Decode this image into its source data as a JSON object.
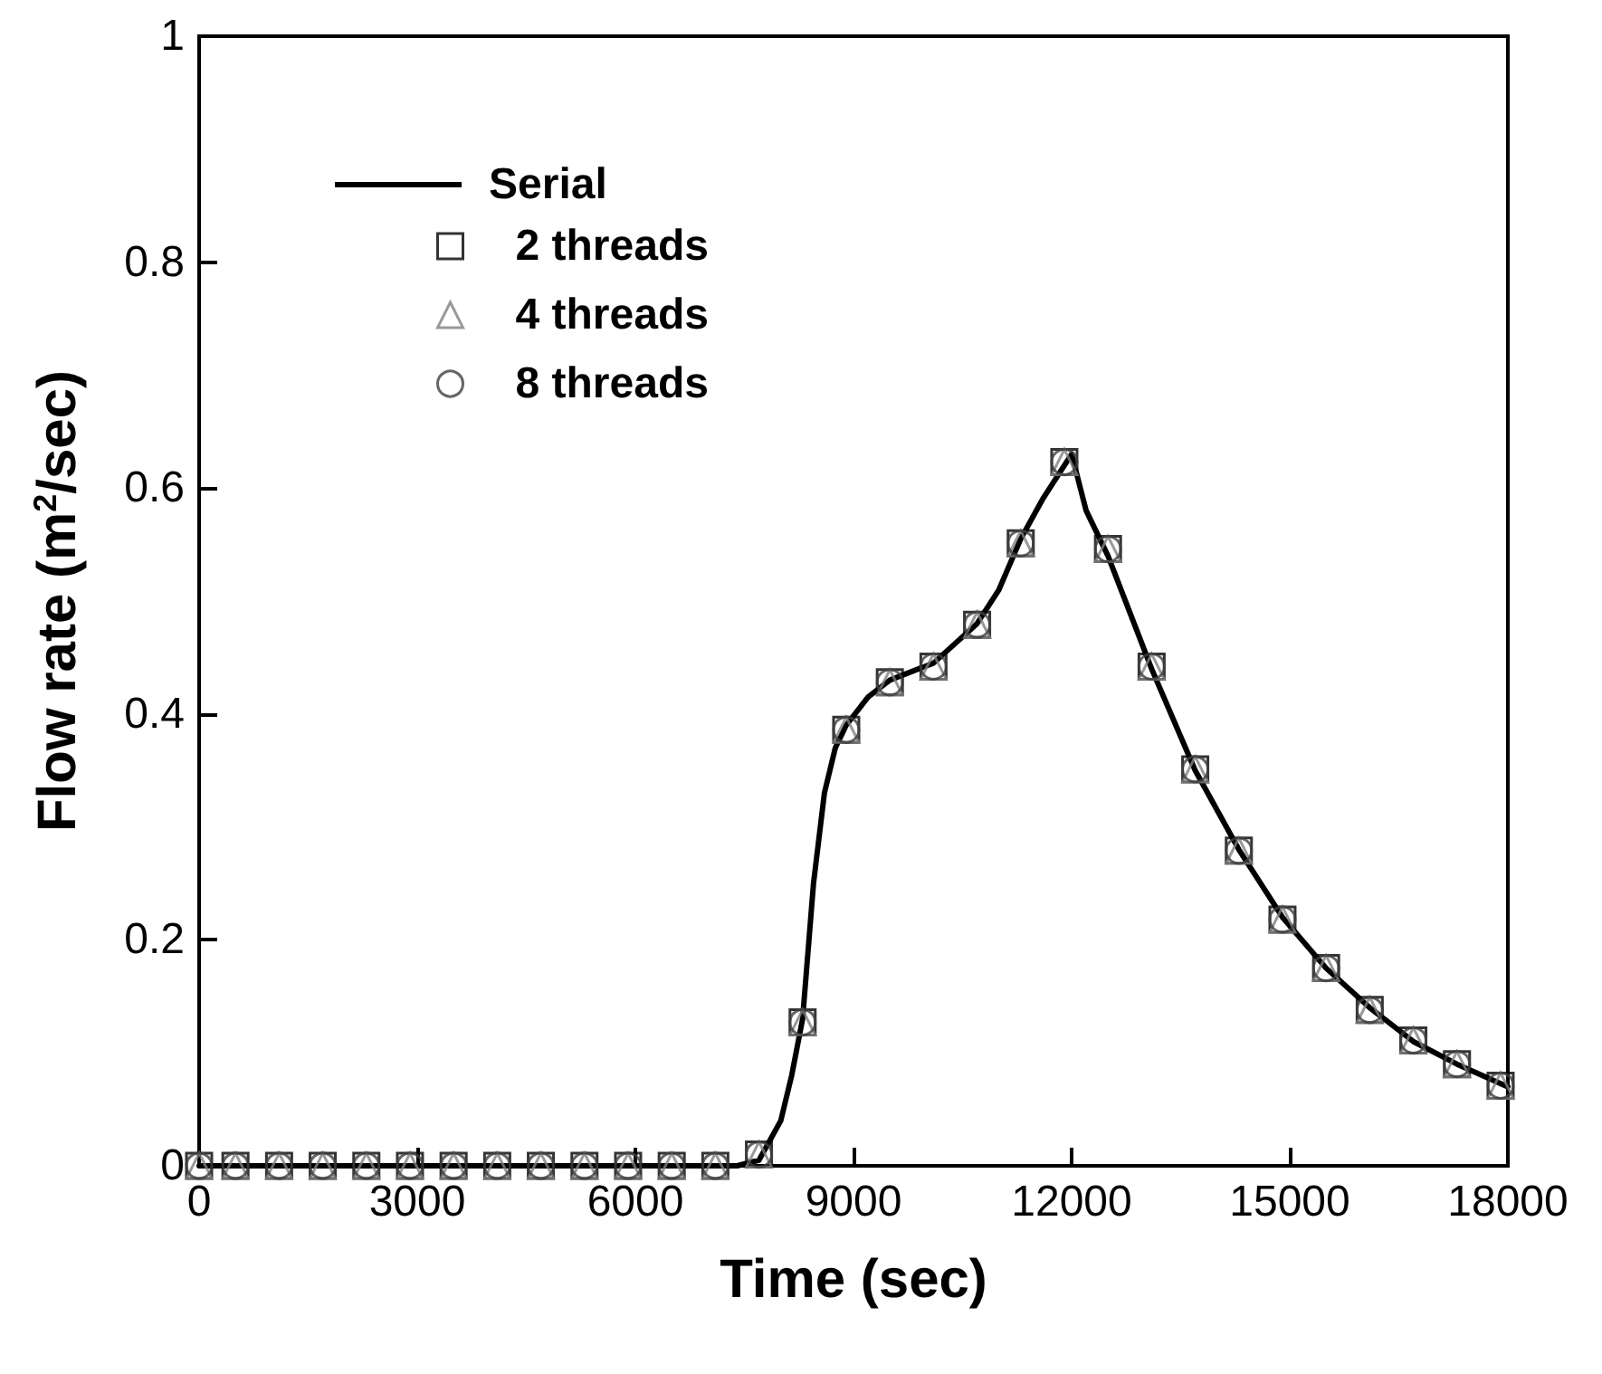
{
  "chart_data": {
    "type": "line",
    "xlabel": "Time (sec)",
    "ylabel": "Flow rate (m$^{2}$/sec)",
    "xlim": [
      0,
      18000
    ],
    "xticks": [
      0,
      3000,
      6000,
      9000,
      12000,
      15000,
      18000
    ],
    "ylim": [
      0,
      1
    ],
    "yticks": [
      0,
      0.2,
      0.4,
      0.6,
      0.8,
      1
    ],
    "grid": false,
    "legend": "top left",
    "series": [
      {
        "name": "Serial",
        "marker": "none",
        "line_style": "solid",
        "color": "#000000",
        "x": [
          0,
          1000,
          2000,
          3000,
          4000,
          5000,
          6000,
          7000,
          7400,
          7700,
          8000,
          8150,
          8300,
          8450,
          8600,
          8750,
          8900,
          9200,
          9500,
          10100,
          10700,
          11000,
          11300,
          11600,
          12000,
          12200,
          12500,
          13100,
          13700,
          14300,
          14900,
          15500,
          16100,
          16700,
          17300,
          18000
        ],
        "values": [
          0,
          0,
          0,
          0,
          0,
          0,
          0,
          0,
          0,
          0.005,
          0.04,
          0.08,
          0.13,
          0.25,
          0.33,
          0.37,
          0.39,
          0.415,
          0.43,
          0.445,
          0.48,
          0.51,
          0.555,
          0.59,
          0.63,
          0.58,
          0.54,
          0.44,
          0.35,
          0.28,
          0.22,
          0.175,
          0.14,
          0.11,
          0.09,
          0.07
        ]
      },
      {
        "name": "2 threads",
        "type": "scatter",
        "marker": "square",
        "color": "#000000",
        "x": [
          0,
          500,
          1100,
          1700,
          2300,
          2900,
          3500,
          4100,
          4700,
          5300,
          5900,
          6500,
          7100,
          7700,
          8300,
          8900,
          9500,
          10100,
          10700,
          11300,
          11900,
          12500,
          13100,
          13700,
          14300,
          14900,
          15500,
          16100,
          16700,
          17300,
          17900
        ],
        "values": [
          0,
          0,
          0,
          0,
          0,
          0,
          0,
          0,
          0,
          0,
          0,
          0,
          0,
          0.01,
          0.127,
          0.386,
          0.428,
          0.442,
          0.479,
          0.551,
          0.623,
          0.546,
          0.442,
          0.351,
          0.279,
          0.218,
          0.175,
          0.138,
          0.111,
          0.09,
          0.071
        ]
      },
      {
        "name": "4 threads",
        "type": "scatter",
        "marker": "triangle",
        "color": "#808080",
        "x": [
          0,
          500,
          1100,
          1700,
          2300,
          2900,
          3500,
          4100,
          4700,
          5300,
          5900,
          6500,
          7100,
          7700,
          8300,
          8900,
          9500,
          10100,
          10700,
          11300,
          11900,
          12500,
          13100,
          13700,
          14300,
          14900,
          15500,
          16100,
          16700,
          17300,
          17900
        ],
        "values": [
          0,
          0,
          0,
          0,
          0,
          0,
          0,
          0,
          0,
          0,
          0,
          0,
          0,
          0.01,
          0.127,
          0.386,
          0.428,
          0.442,
          0.479,
          0.551,
          0.623,
          0.546,
          0.442,
          0.351,
          0.279,
          0.218,
          0.175,
          0.138,
          0.111,
          0.09,
          0.071
        ]
      },
      {
        "name": "8 threads",
        "type": "scatter",
        "marker": "circle",
        "color": "#404040",
        "x": [
          0,
          500,
          1100,
          1700,
          2300,
          2900,
          3500,
          4100,
          4700,
          5300,
          5900,
          6500,
          7100,
          7700,
          8300,
          8900,
          9500,
          10100,
          10700,
          11300,
          11900,
          12500,
          13100,
          13700,
          14300,
          14900,
          15500,
          16100,
          16700,
          17300,
          17900
        ],
        "values": [
          0,
          0,
          0,
          0,
          0,
          0,
          0,
          0,
          0,
          0,
          0,
          0,
          0,
          0.01,
          0.127,
          0.386,
          0.428,
          0.442,
          0.479,
          0.551,
          0.623,
          0.546,
          0.442,
          0.351,
          0.279,
          0.218,
          0.175,
          0.138,
          0.111,
          0.09,
          0.071
        ]
      }
    ]
  }
}
